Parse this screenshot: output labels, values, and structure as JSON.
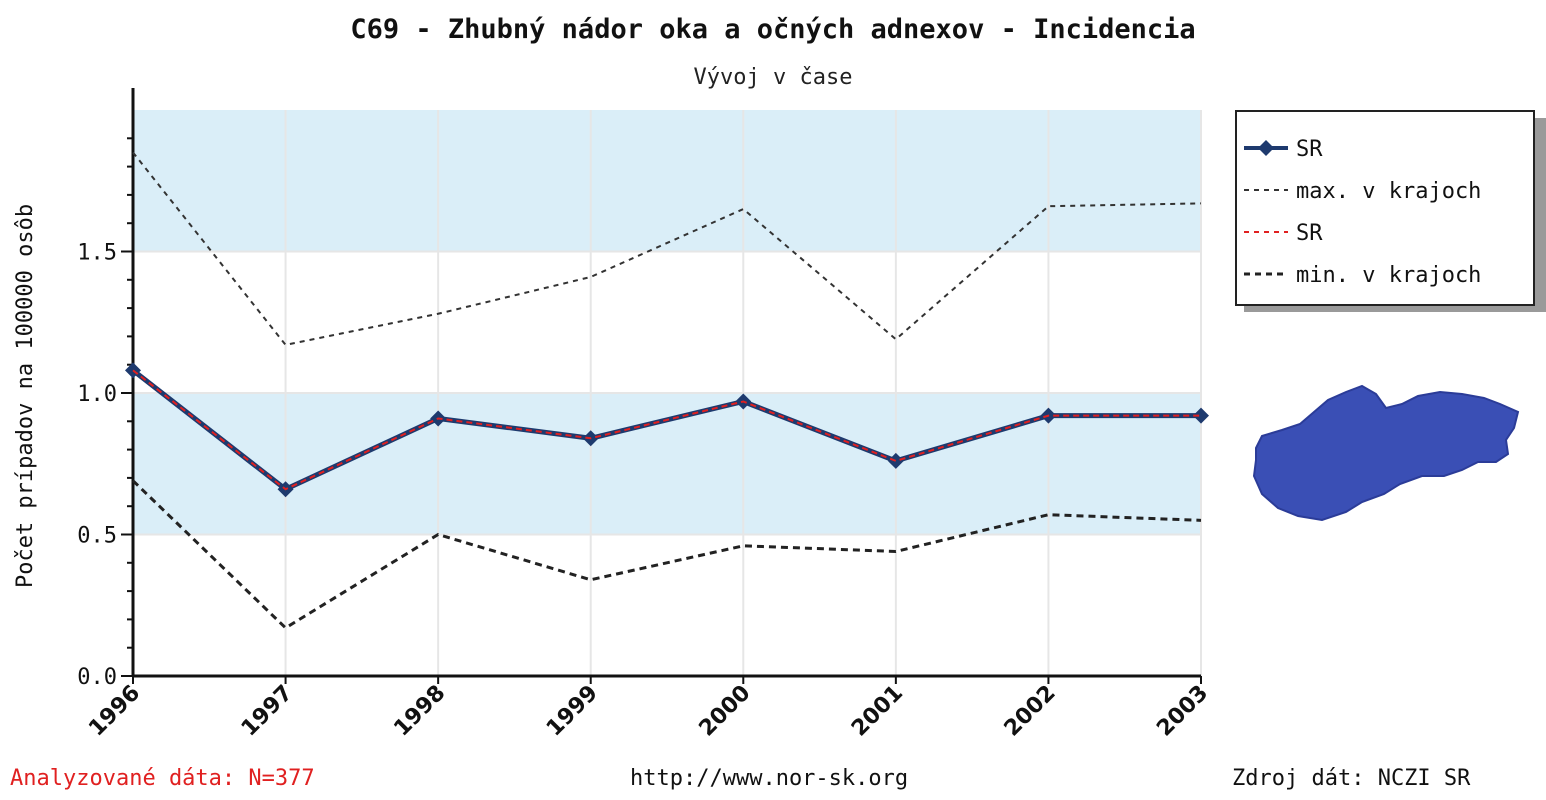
{
  "chart_data": {
    "type": "line",
    "title": "C69 - Zhubný nádor oka a očných adnexov - Incidencia",
    "subtitle": "Vývoj v čase",
    "ylabel": "Počet prípadov na 100000 osôb",
    "xlabel": "",
    "x": [
      "1996",
      "1997",
      "1998",
      "1999",
      "2000",
      "2001",
      "2002",
      "2003"
    ],
    "ylim": [
      0,
      2.0
    ],
    "yticks": [
      0.0,
      0.5,
      1.0,
      1.5
    ],
    "ytick_labels": [
      "0.0",
      "0.5",
      "1.0",
      "1.5"
    ],
    "bands": [
      [
        0.5,
        1.0
      ],
      [
        1.5,
        2.0
      ]
    ],
    "band_color": "#daeef8",
    "grid": true,
    "legend_position": "right",
    "series": [
      {
        "name": "SR",
        "style": "solid-marker",
        "color": "#1e3a6e",
        "values": [
          1.08,
          0.66,
          0.91,
          0.84,
          0.97,
          0.76,
          0.92,
          0.92
        ]
      },
      {
        "name": "max. v krajoch",
        "style": "dashed",
        "color": "#333333",
        "values": [
          1.85,
          1.17,
          1.28,
          1.41,
          1.65,
          1.19,
          1.66,
          1.67
        ]
      },
      {
        "name": "SR",
        "style": "dashed",
        "color": "#e02020",
        "values": [
          1.08,
          0.66,
          0.91,
          0.84,
          0.97,
          0.76,
          0.92,
          0.92
        ]
      },
      {
        "name": "min. v krajoch",
        "style": "dashed-bold",
        "color": "#222222",
        "values": [
          0.69,
          0.17,
          0.5,
          0.34,
          0.46,
          0.44,
          0.57,
          0.55
        ]
      }
    ]
  },
  "footer": {
    "left": "Analyzované dáta: N=377",
    "center": "http://www.nor-sk.org",
    "right": "Zdroj dát: NCZI SR"
  },
  "map": {
    "icon": "slovakia-map-icon",
    "color": "#3a4fb5"
  }
}
